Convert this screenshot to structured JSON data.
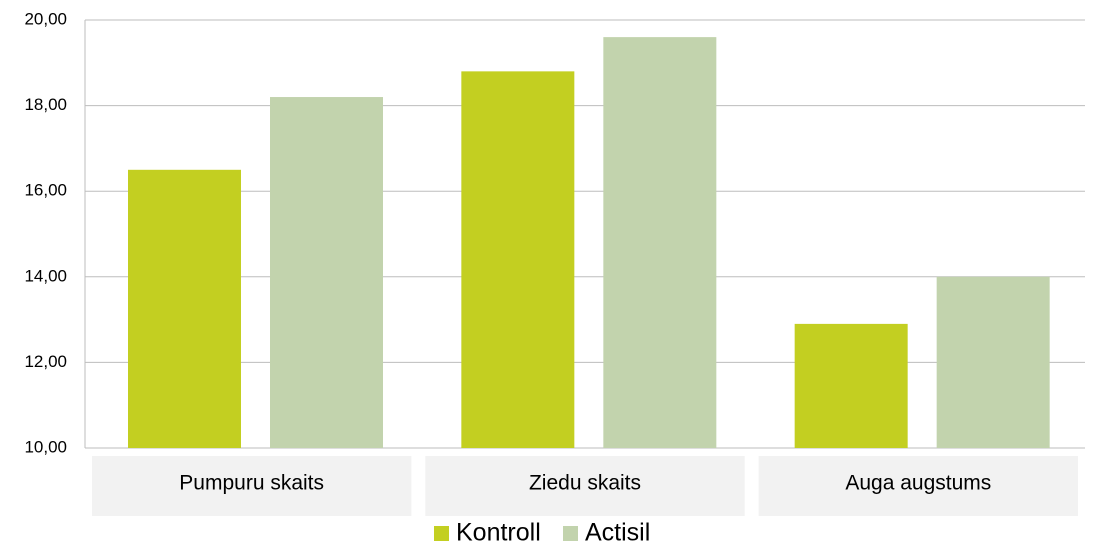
{
  "chart_data": {
    "type": "bar",
    "categories": [
      "Pumpuru skaits",
      "Ziedu skaits",
      "Auga augstums"
    ],
    "series": [
      {
        "name": "Kontroll",
        "color": "#c3cf21",
        "values": [
          16.5,
          18.8,
          12.9
        ]
      },
      {
        "name": "Actisil",
        "color": "#c2d3ad",
        "values": [
          18.2,
          19.6,
          14.0
        ]
      }
    ],
    "ylim": [
      10,
      20
    ],
    "yticks": [
      {
        "value": 10,
        "label": "10,00"
      },
      {
        "value": 12,
        "label": "12,00"
      },
      {
        "value": 14,
        "label": "14,00"
      },
      {
        "value": 16,
        "label": "16,00"
      },
      {
        "value": 18,
        "label": "18,00"
      },
      {
        "value": 20,
        "label": "20,00"
      }
    ],
    "grid": true
  }
}
